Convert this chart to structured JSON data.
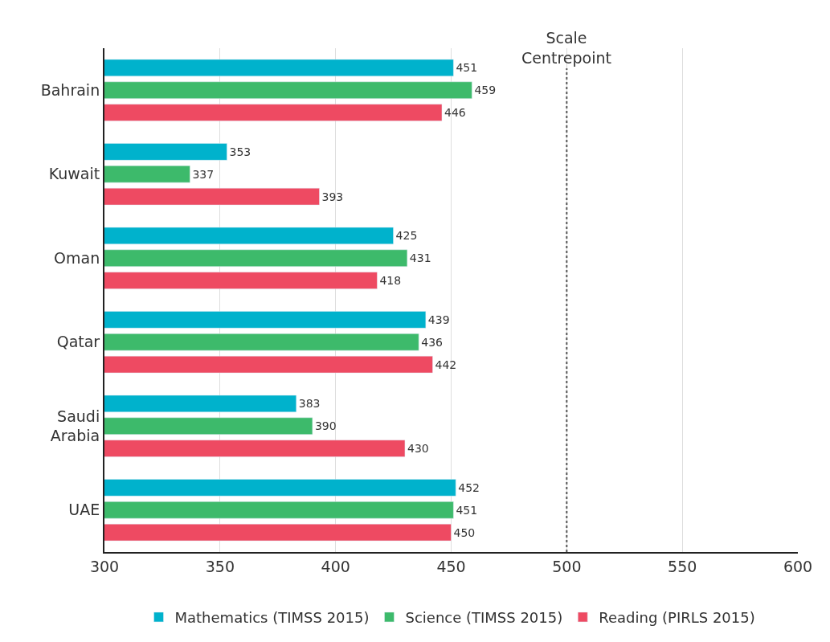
{
  "chart_data": {
    "type": "bar",
    "orientation": "horizontal",
    "categories": [
      "Bahrain",
      "Kuwait",
      "Oman",
      "Qatar",
      "Saudi Arabia",
      "UAE"
    ],
    "series": [
      {
        "name": "Mathematics (TIMSS 2015)",
        "color": "#00b2cc",
        "values": [
          451,
          353,
          425,
          439,
          383,
          452
        ]
      },
      {
        "name": "Science (TIMSS 2015)",
        "color": "#3dba6b",
        "values": [
          459,
          337,
          431,
          436,
          390,
          451
        ]
      },
      {
        "name": "Reading (PIRLS 2015)",
        "color": "#ee4a62",
        "values": [
          446,
          393,
          418,
          442,
          430,
          450
        ]
      }
    ],
    "xlim": [
      300,
      600
    ],
    "xticks": [
      300,
      350,
      400,
      450,
      500,
      550,
      600
    ],
    "ref_lines": [
      {
        "axis": "x",
        "value": 500,
        "label": "Scale Centrepoint",
        "color": "#555555",
        "line_style": "dotted"
      }
    ],
    "grid": "x",
    "legend": "bottom",
    "data_labels": true
  }
}
